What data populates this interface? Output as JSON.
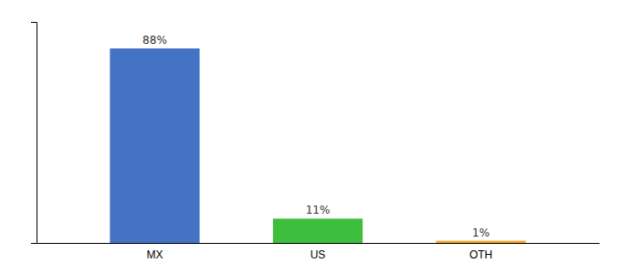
{
  "chart_data": {
    "type": "bar",
    "categories": [
      "MX",
      "US",
      "OTH"
    ],
    "values": [
      88,
      11,
      1
    ],
    "value_labels": [
      "88%",
      "11%",
      "1%"
    ],
    "data_labels": true,
    "colors": [
      "#4472C4",
      "#3DBE3D",
      "#F5A623"
    ],
    "ylim": [
      0,
      100
    ],
    "tick_labels": "x",
    "grid": false
  }
}
